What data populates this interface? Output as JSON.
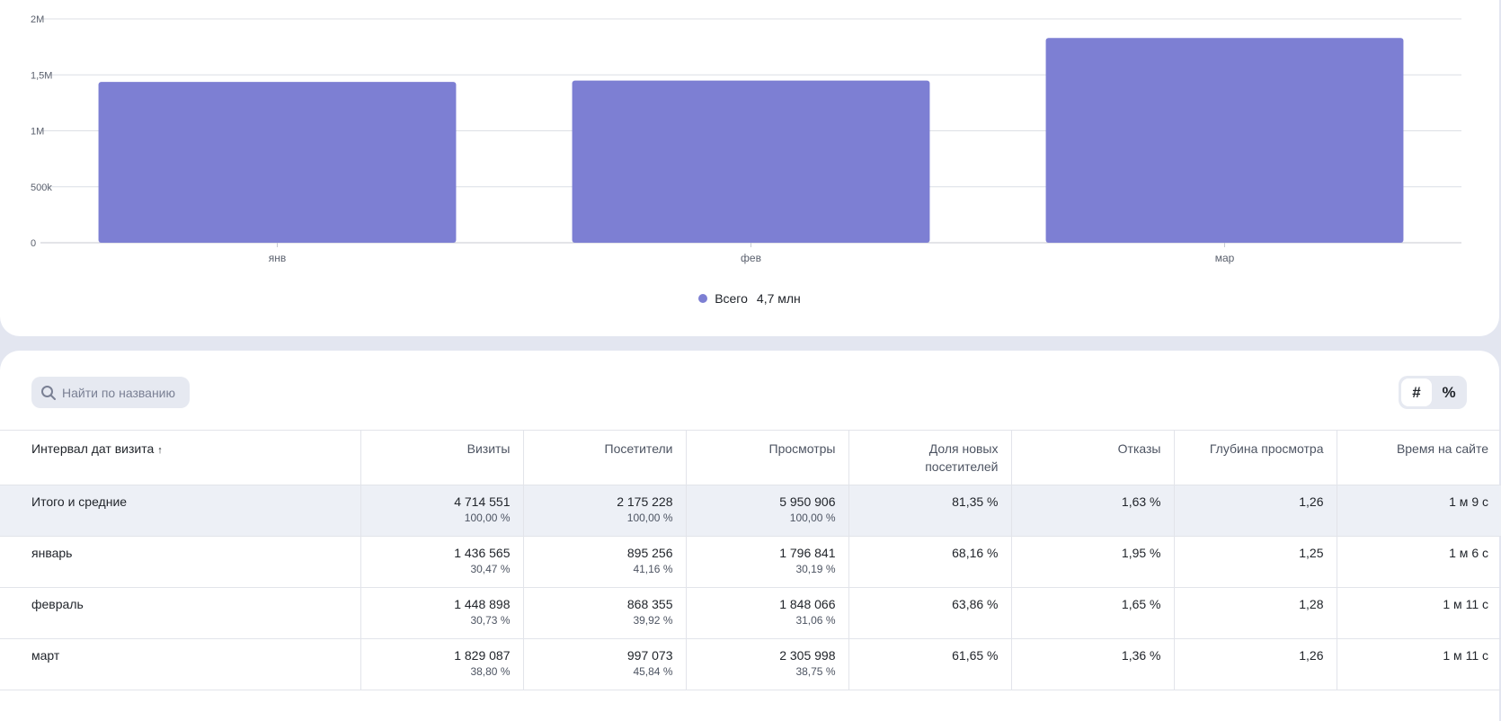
{
  "chart_data": {
    "type": "bar",
    "categories": [
      "янв",
      "фев",
      "мар"
    ],
    "values": [
      1436565,
      1448898,
      1829087
    ],
    "y_ticks": [
      {
        "value": 0,
        "label": "0"
      },
      {
        "value": 500000,
        "label": "500k"
      },
      {
        "value": 1000000,
        "label": "1M"
      },
      {
        "value": 1500000,
        "label": "1,5M"
      },
      {
        "value": 2000000,
        "label": "2M"
      }
    ],
    "ylim": [
      0,
      2000000
    ],
    "color": "#7d7fd3",
    "legend": {
      "label": "Всего",
      "value": "4,7 млн"
    }
  },
  "search": {
    "placeholder": "Найти по названию"
  },
  "view_toggle": {
    "hash": "#",
    "percent": "%"
  },
  "table": {
    "headers": [
      "Интервал дат визита",
      "Визиты",
      "Посетители",
      "Просмотры",
      "Доля новых посетителей",
      "Отказы",
      "Глубина просмотра",
      "Время на сайте"
    ],
    "sort_indicator": "↑",
    "rows": [
      {
        "name": "Итого и средние",
        "visits": "4 714 551",
        "visits_pct": "100,00 %",
        "visitors": "2 175 228",
        "visitors_pct": "100,00 %",
        "views": "5 950 906",
        "views_pct": "100,00 %",
        "new_share": "81,35 %",
        "bounce": "1,63 %",
        "depth": "1,26",
        "time": "1 м 9 с"
      },
      {
        "name": "январь",
        "visits": "1 436 565",
        "visits_pct": "30,47 %",
        "visitors": "895 256",
        "visitors_pct": "41,16 %",
        "views": "1 796 841",
        "views_pct": "30,19 %",
        "new_share": "68,16 %",
        "bounce": "1,95 %",
        "depth": "1,25",
        "time": "1 м 6 с"
      },
      {
        "name": "февраль",
        "visits": "1 448 898",
        "visits_pct": "30,73 %",
        "visitors": "868 355",
        "visitors_pct": "39,92 %",
        "views": "1 848 066",
        "views_pct": "31,06 %",
        "new_share": "63,86 %",
        "bounce": "1,65 %",
        "depth": "1,28",
        "time": "1 м 11 с"
      },
      {
        "name": "март",
        "visits": "1 829 087",
        "visits_pct": "38,80 %",
        "visitors": "997 073",
        "visitors_pct": "45,84 %",
        "views": "2 305 998",
        "views_pct": "38,75 %",
        "new_share": "61,65 %",
        "bounce": "1,36 %",
        "depth": "1,26",
        "time": "1 м 11 с"
      }
    ]
  }
}
